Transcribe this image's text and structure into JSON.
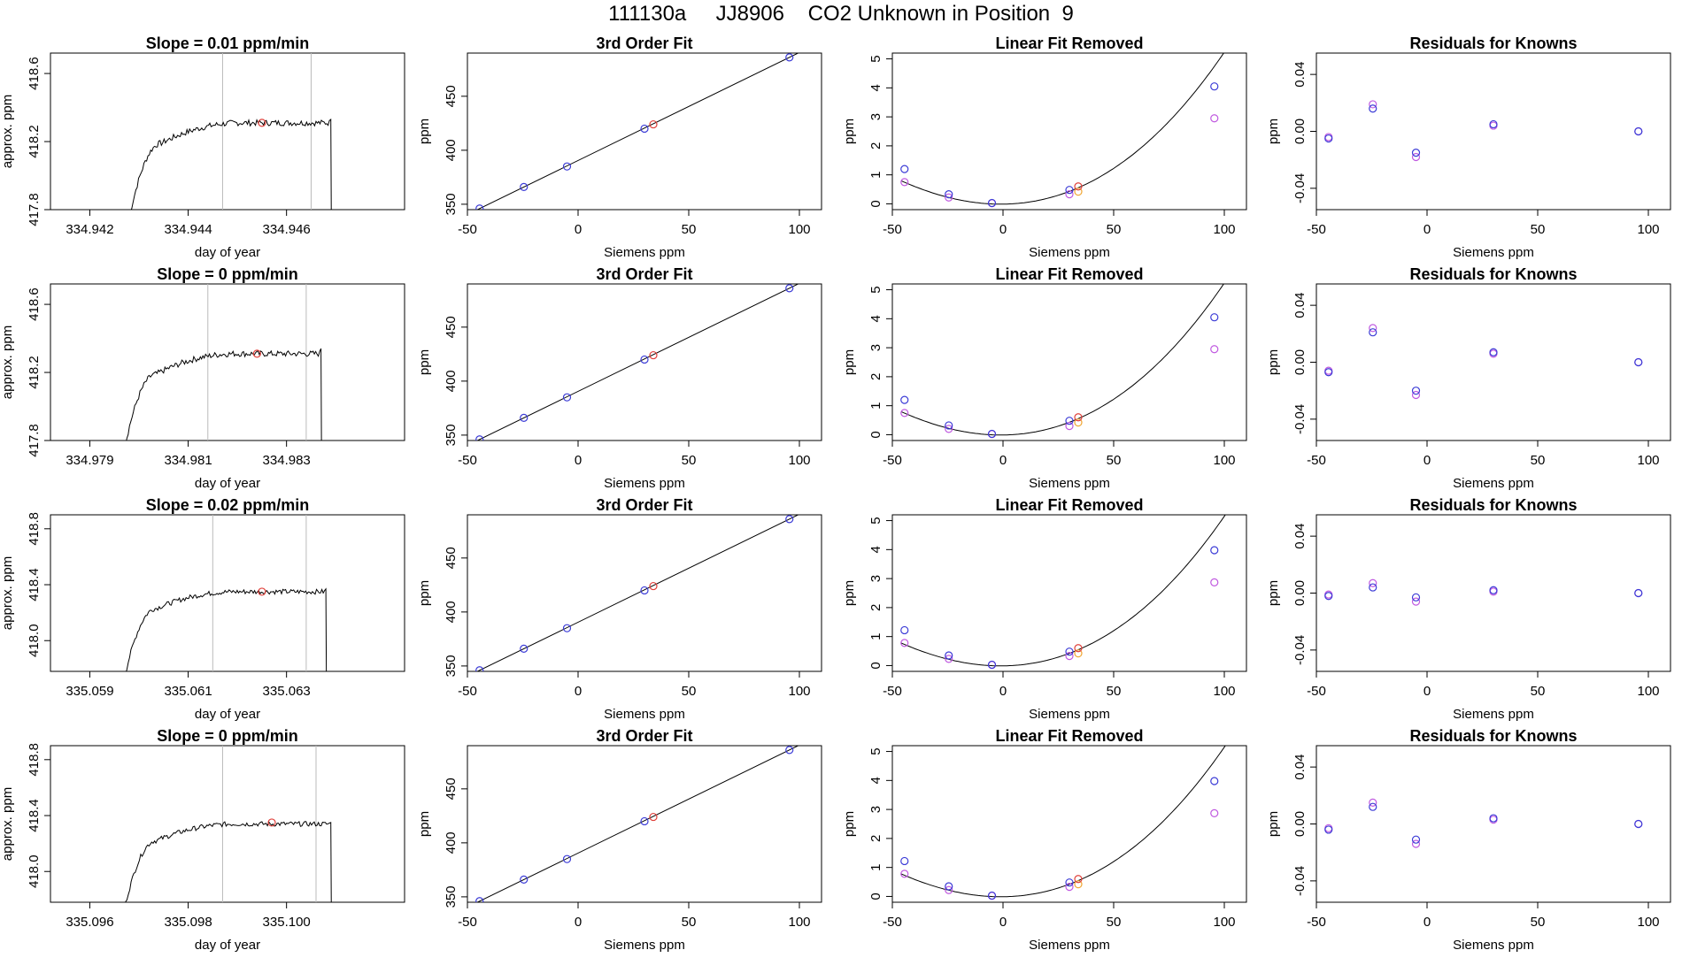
{
  "page_title": "111130a     JJ8906    CO2 Unknown in Position  9",
  "colors": {
    "known_blue": "#3b3bd6",
    "known_magenta": "#c05ae0",
    "unknown_red": "#e0403a",
    "unknown_orange": "#f0a530",
    "trace": "#000000",
    "vline": "#bbbbbb"
  },
  "chart_data": [
    {
      "type": "line",
      "row": 1,
      "title": "Slope =  0.01  ppm/min",
      "xlabel": "day of year",
      "ylabel": "approx. ppm",
      "xlim": [
        334.9412,
        334.9484
      ],
      "ylim": [
        417.8,
        418.72
      ],
      "xticks": [
        334.942,
        334.944,
        334.946
      ],
      "xtick_labels": [
        "334.942",
        "334.944",
        "334.946"
      ],
      "yticks": [
        417.8,
        418.2,
        418.6
      ],
      "ytick_labels": [
        "417.8",
        "418.2",
        "418.6"
      ],
      "vlines": [
        334.9447,
        334.9465
      ],
      "rise_start": 334.9428,
      "plateau_level": 418.31,
      "drop_x": 334.9469,
      "end_level": 418.33,
      "point": [
        334.9455,
        418.31
      ]
    },
    {
      "type": "scatter",
      "row": 1,
      "title": "3rd Order Fit",
      "xlabel": "Siemens ppm",
      "ylabel": "ppm",
      "xlim": [
        -50,
        110
      ],
      "ylim": [
        345,
        490
      ],
      "xticks": [
        -50,
        0,
        50,
        100
      ],
      "yticks": [
        350,
        400,
        450
      ],
      "line": {
        "slope": 1.0006,
        "intercept": 390.5
      },
      "knowns": [
        [
          -44.5,
          346
        ],
        [
          -24.5,
          366
        ],
        [
          -5,
          385
        ],
        [
          30,
          420
        ],
        [
          95.5,
          486
        ]
      ],
      "unknown": [
        34,
        424
      ]
    },
    {
      "type": "scatter",
      "row": 1,
      "title": "Linear Fit Removed",
      "xlabel": "Siemens ppm",
      "ylabel": "ppm",
      "xlim": [
        -50,
        110
      ],
      "ylim": [
        -0.2,
        5.2
      ],
      "xticks": [
        -50,
        0,
        50,
        100
      ],
      "yticks": [
        0,
        1,
        2,
        3,
        4,
        5
      ],
      "curve_center": 0,
      "curve_scale": 0.000433,
      "curve_vertex": [
        -1,
        -0.01
      ],
      "knowns_blue": [
        [
          -44.5,
          1.2
        ],
        [
          -24.5,
          0.33
        ],
        [
          -5,
          0.03
        ],
        [
          30,
          0.48
        ],
        [
          95.5,
          4.05
        ]
      ],
      "knowns_magenta": [
        [
          -44.5,
          0.75
        ],
        [
          -24.5,
          0.22
        ],
        [
          -5,
          0.02
        ],
        [
          30,
          0.33
        ],
        [
          95.5,
          2.95
        ]
      ],
      "unknown_red": [
        34,
        0.6
      ],
      "unknown_orange": [
        34,
        0.42
      ]
    },
    {
      "type": "scatter",
      "row": 1,
      "title": "Residuals for Knowns",
      "xlabel": "Siemens ppm",
      "ylabel": "ppm",
      "xlim": [
        -50,
        110
      ],
      "ylim": [
        -0.055,
        0.055
      ],
      "xticks": [
        -50,
        0,
        50,
        100
      ],
      "yticks": [
        -0.04,
        0,
        0.04
      ],
      "ytick_labels": [
        "-0.04",
        "0.00",
        "0.04"
      ],
      "points_blue": [
        [
          -44.5,
          -0.005
        ],
        [
          -24.5,
          0.016
        ],
        [
          -5,
          -0.015
        ],
        [
          30,
          0.005
        ],
        [
          95.5,
          0.0
        ]
      ],
      "points_magenta": [
        [
          -44.5,
          -0.004
        ],
        [
          -24.5,
          0.019
        ],
        [
          -5,
          -0.018
        ],
        [
          30,
          0.004
        ],
        [
          95.5,
          0.0
        ]
      ]
    },
    {
      "type": "line",
      "row": 2,
      "title": "Slope =  0  ppm/min",
      "xlabel": "day of year",
      "ylabel": "approx. ppm",
      "xlim": [
        334.9782,
        334.9854
      ],
      "ylim": [
        417.8,
        418.72
      ],
      "xticks": [
        334.979,
        334.981,
        334.983
      ],
      "xtick_labels": [
        "334.979",
        "334.981",
        "334.983"
      ],
      "yticks": [
        417.8,
        418.2,
        418.6
      ],
      "ytick_labels": [
        "417.8",
        "418.2",
        "418.6"
      ],
      "vlines": [
        334.9814,
        334.9834
      ],
      "rise_start": 334.9797,
      "plateau_level": 418.31,
      "drop_x": 334.9837,
      "end_level": 418.34,
      "point": [
        334.9824,
        418.31
      ]
    },
    {
      "type": "scatter",
      "row": 2,
      "title": "3rd Order Fit",
      "xlabel": "Siemens ppm",
      "ylabel": "ppm",
      "xlim": [
        -50,
        110
      ],
      "ylim": [
        345,
        490
      ],
      "xticks": [
        -50,
        0,
        50,
        100
      ],
      "yticks": [
        350,
        400,
        450
      ],
      "line": {
        "slope": 1.0006,
        "intercept": 390.5
      },
      "knowns": [
        [
          -44.5,
          346
        ],
        [
          -24.5,
          366
        ],
        [
          -5,
          385
        ],
        [
          30,
          420
        ],
        [
          95.5,
          486
        ]
      ],
      "unknown": [
        34,
        424
      ]
    },
    {
      "type": "scatter",
      "row": 2,
      "title": "Linear Fit Removed",
      "xlabel": "Siemens ppm",
      "ylabel": "ppm",
      "xlim": [
        -50,
        110
      ],
      "ylim": [
        -0.2,
        5.2
      ],
      "xticks": [
        -50,
        0,
        50,
        100
      ],
      "yticks": [
        0,
        1,
        2,
        3,
        4,
        5
      ],
      "curve_center": 0,
      "curve_scale": 0.000433,
      "curve_vertex": [
        -1,
        -0.01
      ],
      "knowns_blue": [
        [
          -44.5,
          1.2
        ],
        [
          -24.5,
          0.32
        ],
        [
          -5,
          0.03
        ],
        [
          30,
          0.48
        ],
        [
          95.5,
          4.05
        ]
      ],
      "knowns_magenta": [
        [
          -44.5,
          0.75
        ],
        [
          -24.5,
          0.2
        ],
        [
          -5,
          0.02
        ],
        [
          30,
          0.3
        ],
        [
          95.5,
          2.95
        ]
      ],
      "unknown_red": [
        34,
        0.6
      ],
      "unknown_orange": [
        34,
        0.42
      ]
    },
    {
      "type": "scatter",
      "row": 2,
      "title": "Residuals for Knowns",
      "xlabel": "Siemens ppm",
      "ylabel": "ppm",
      "xlim": [
        -50,
        110
      ],
      "ylim": [
        -0.055,
        0.055
      ],
      "xticks": [
        -50,
        0,
        50,
        100
      ],
      "yticks": [
        -0.04,
        0,
        0.04
      ],
      "ytick_labels": [
        "-0.04",
        "0.00",
        "0.04"
      ],
      "points_blue": [
        [
          -44.5,
          -0.007
        ],
        [
          -24.5,
          0.021
        ],
        [
          -5,
          -0.02
        ],
        [
          30,
          0.007
        ],
        [
          95.5,
          0.0
        ]
      ],
      "points_magenta": [
        [
          -44.5,
          -0.006
        ],
        [
          -24.5,
          0.024
        ],
        [
          -5,
          -0.023
        ],
        [
          30,
          0.006
        ],
        [
          95.5,
          0.0
        ]
      ]
    },
    {
      "type": "line",
      "row": 3,
      "title": "Slope =  0.02  ppm/min",
      "xlabel": "day of year",
      "ylabel": "approx. ppm",
      "xlim": [
        335.0582,
        335.0654
      ],
      "ylim": [
        417.78,
        418.9
      ],
      "xticks": [
        335.059,
        335.061,
        335.063
      ],
      "xtick_labels": [
        "335.059",
        "335.061",
        "335.063"
      ],
      "yticks": [
        418.0,
        418.4,
        418.8
      ],
      "ytick_labels": [
        "418.0",
        "418.4",
        "418.8"
      ],
      "vlines": [
        335.0615,
        335.0634
      ],
      "rise_start": 335.0597,
      "plateau_level": 418.35,
      "drop_x": 335.0638,
      "end_level": 418.37,
      "point": [
        335.0625,
        418.35
      ]
    },
    {
      "type": "scatter",
      "row": 3,
      "title": "3rd Order Fit",
      "xlabel": "Siemens ppm",
      "ylabel": "ppm",
      "xlim": [
        -50,
        110
      ],
      "ylim": [
        345,
        490
      ],
      "xticks": [
        -50,
        0,
        50,
        100
      ],
      "yticks": [
        350,
        400,
        450
      ],
      "line": {
        "slope": 1.0006,
        "intercept": 390.5
      },
      "knowns": [
        [
          -44.5,
          346
        ],
        [
          -24.5,
          366
        ],
        [
          -5,
          385
        ],
        [
          30,
          420
        ],
        [
          95.5,
          486
        ]
      ],
      "unknown": [
        34,
        424
      ]
    },
    {
      "type": "scatter",
      "row": 3,
      "title": "Linear Fit Removed",
      "xlabel": "Siemens ppm",
      "ylabel": "ppm",
      "xlim": [
        -50,
        110
      ],
      "ylim": [
        -0.2,
        5.2
      ],
      "xticks": [
        -50,
        0,
        50,
        100
      ],
      "yticks": [
        0,
        1,
        2,
        3,
        4,
        5
      ],
      "curve_center": 0,
      "curve_scale": 0.000425,
      "curve_vertex": [
        -1,
        -0.01
      ],
      "knowns_blue": [
        [
          -44.5,
          1.22
        ],
        [
          -24.5,
          0.35
        ],
        [
          -5,
          0.03
        ],
        [
          30,
          0.48
        ],
        [
          95.5,
          3.98
        ]
      ],
      "knowns_magenta": [
        [
          -44.5,
          0.78
        ],
        [
          -24.5,
          0.23
        ],
        [
          -5,
          0.02
        ],
        [
          30,
          0.33
        ],
        [
          95.5,
          2.87
        ]
      ],
      "unknown_red": [
        34,
        0.6
      ],
      "unknown_orange": [
        34,
        0.42
      ]
    },
    {
      "type": "scatter",
      "row": 3,
      "title": "Residuals for Knowns",
      "xlabel": "Siemens ppm",
      "ylabel": "ppm",
      "xlim": [
        -50,
        110
      ],
      "ylim": [
        -0.055,
        0.055
      ],
      "xticks": [
        -50,
        0,
        50,
        100
      ],
      "yticks": [
        -0.04,
        0,
        0.04
      ],
      "ytick_labels": [
        "-0.04",
        "0.00",
        "0.04"
      ],
      "points_blue": [
        [
          -44.5,
          -0.002
        ],
        [
          -24.5,
          0.004
        ],
        [
          -5,
          -0.003
        ],
        [
          30,
          0.002
        ],
        [
          95.5,
          0.0
        ]
      ],
      "points_magenta": [
        [
          -44.5,
          -0.001
        ],
        [
          -24.5,
          0.007
        ],
        [
          -5,
          -0.006
        ],
        [
          30,
          0.001
        ],
        [
          95.5,
          0.0
        ]
      ]
    },
    {
      "type": "line",
      "row": 4,
      "title": "Slope =  0  ppm/min",
      "xlabel": "day of year",
      "ylabel": "approx. ppm",
      "xlim": [
        335.0952,
        335.1024
      ],
      "ylim": [
        417.78,
        418.9
      ],
      "xticks": [
        335.096,
        335.098,
        335.1
      ],
      "xtick_labels": [
        "335.096",
        "335.098",
        "335.100"
      ],
      "yticks": [
        418.0,
        418.4,
        418.8
      ],
      "ytick_labels": [
        "418.0",
        "418.4",
        "418.8"
      ],
      "vlines": [
        335.0987,
        335.1006
      ],
      "rise_start": 335.0967,
      "plateau_level": 418.34,
      "drop_x": 335.1009,
      "end_level": 418.35,
      "point": [
        335.0997,
        418.35
      ]
    },
    {
      "type": "scatter",
      "row": 4,
      "title": "3rd Order Fit",
      "xlabel": "Siemens ppm",
      "ylabel": "ppm",
      "xlim": [
        -50,
        110
      ],
      "ylim": [
        345,
        490
      ],
      "xticks": [
        -50,
        0,
        50,
        100
      ],
      "yticks": [
        350,
        400,
        450
      ],
      "line": {
        "slope": 1.0006,
        "intercept": 390.5
      },
      "knowns": [
        [
          -44.5,
          346
        ],
        [
          -24.5,
          366
        ],
        [
          -5,
          385
        ],
        [
          30,
          420
        ],
        [
          95.5,
          486
        ]
      ],
      "unknown": [
        34,
        424
      ]
    },
    {
      "type": "scatter",
      "row": 4,
      "title": "Linear Fit Removed",
      "xlabel": "Siemens ppm",
      "ylabel": "ppm",
      "xlim": [
        -50,
        110
      ],
      "ylim": [
        -0.2,
        5.2
      ],
      "xticks": [
        -50,
        0,
        50,
        100
      ],
      "yticks": [
        0,
        1,
        2,
        3,
        4,
        5
      ],
      "curve_center": 0,
      "curve_scale": 0.000425,
      "curve_vertex": [
        -1,
        -0.01
      ],
      "knowns_blue": [
        [
          -44.5,
          1.22
        ],
        [
          -24.5,
          0.35
        ],
        [
          -5,
          0.03
        ],
        [
          30,
          0.48
        ],
        [
          95.5,
          3.98
        ]
      ],
      "knowns_magenta": [
        [
          -44.5,
          0.78
        ],
        [
          -24.5,
          0.22
        ],
        [
          -5,
          0.02
        ],
        [
          30,
          0.33
        ],
        [
          95.5,
          2.87
        ]
      ],
      "unknown_red": [
        34,
        0.6
      ],
      "unknown_orange": [
        34,
        0.42
      ]
    },
    {
      "type": "scatter",
      "row": 4,
      "title": "Residuals for Knowns",
      "xlabel": "Siemens ppm",
      "ylabel": "ppm",
      "xlim": [
        -50,
        110
      ],
      "ylim": [
        -0.055,
        0.055
      ],
      "xticks": [
        -50,
        0,
        50,
        100
      ],
      "yticks": [
        -0.04,
        0,
        0.04
      ],
      "ytick_labels": [
        "-0.04",
        "0.00",
        "0.04"
      ],
      "points_blue": [
        [
          -44.5,
          -0.004
        ],
        [
          -24.5,
          0.012
        ],
        [
          -5,
          -0.011
        ],
        [
          30,
          0.004
        ],
        [
          95.5,
          0.0
        ]
      ],
      "points_magenta": [
        [
          -44.5,
          -0.003
        ],
        [
          -24.5,
          0.015
        ],
        [
          -5,
          -0.014
        ],
        [
          30,
          0.003
        ],
        [
          95.5,
          0.0
        ]
      ]
    }
  ]
}
